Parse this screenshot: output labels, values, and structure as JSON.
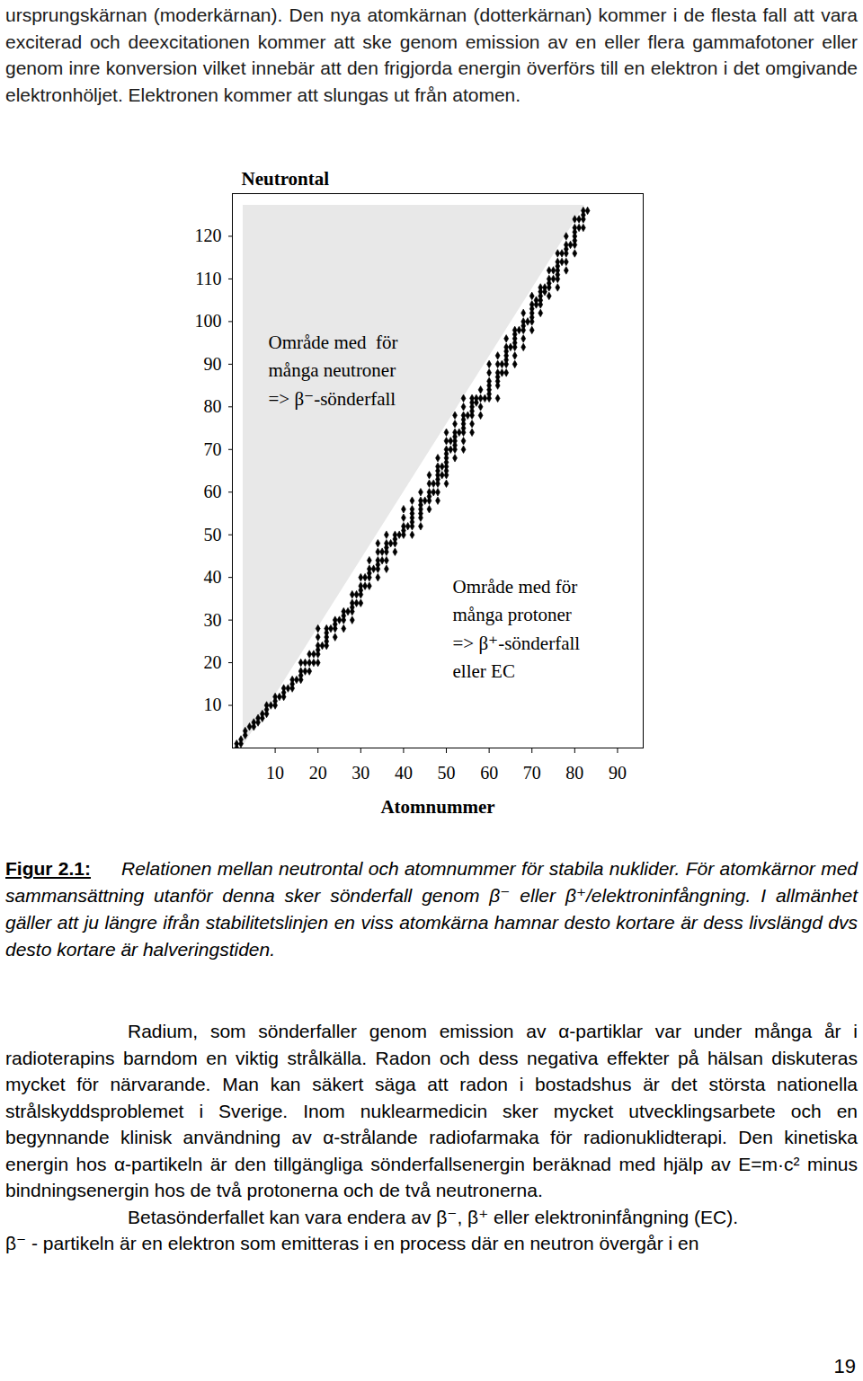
{
  "page": {
    "top_text": "ursprungskärnan (moderkärnan). Den nya atomkärnan (dotterkärnan) kommer i de flesta fall att vara exciterad och deexcitationen kommer att ske genom emission av en eller flera gammafotoner eller genom inre konversion vilket innebär att den frigjorda energin överförs till en elektron i det omgivande elektronhöljet. Elektronen kommer att slungas ut från atomen.",
    "caption": {
      "label": "Figur 2.1:",
      "text": "Relationen mellan neutrontal och atomnummer för stabila nuklider. För atomkärnor med sammansättning utanför denna sker sönderfall genom β⁻ eller β⁺/elektroninfångning. I allmänhet gäller att ju längre ifrån stabilitetslinjen en viss atomkärna hamnar desto kortare är dess livslängd dvs desto kortare är halveringstiden."
    },
    "paragraphs": [
      "Radium, som sönderfaller genom emission av α-partiklar var under många år i radioterapins barndom en viktig strålkälla. Radon och dess negativa effekter på hälsan diskuteras mycket för närvarande. Man kan säkert säga att radon i bostadshus är det största nationella strålskyddsproblemet i Sverige. Inom nuklearmedicin sker mycket utvecklingsarbete och en begynnande klinisk användning av α-strålande radiofarmaka för radionuklidterapi. Den kinetiska energin hos α-partikeln är den tillgängliga sönderfallsenergin beräknad med hjälp av E=m·c² minus bindningsenergin hos de två protonerna och de två neutronerna.",
      "Betasönderfallet kan vara endera av β⁻, β⁺ eller elektroninfångning (EC)."
    ],
    "continuation": "β⁻ - partikeln är en elektron som emitteras i en process där en neutron övergår i en",
    "page_number": "19"
  },
  "chart_data": {
    "type": "scatter",
    "y_label": "Neutrontal",
    "x_label": "Atomnummer",
    "marker": "diamond",
    "color": "#000000",
    "grid": false,
    "xlim": [
      0,
      96
    ],
    "ylim": [
      0,
      130
    ],
    "xticks": [
      10,
      20,
      30,
      40,
      50,
      60,
      70,
      80,
      90
    ],
    "yticks": [
      10,
      20,
      30,
      40,
      50,
      60,
      70,
      80,
      90,
      100,
      110,
      120
    ],
    "annotations": [
      "Område med  för\nmånga neutroner\n=> β⁻-sönderfall",
      "Område med för\nmånga protoner\n=> β⁺-sönderfall\neller EC"
    ],
    "x": [
      1,
      1,
      2,
      2,
      3,
      3,
      4,
      5,
      5,
      6,
      6,
      7,
      7,
      8,
      8,
      8,
      9,
      10,
      10,
      10,
      11,
      12,
      12,
      12,
      13,
      14,
      14,
      14,
      15,
      16,
      16,
      16,
      16,
      17,
      17,
      18,
      18,
      18,
      19,
      19,
      20,
      20,
      20,
      20,
      20,
      20,
      21,
      22,
      22,
      22,
      22,
      22,
      23,
      24,
      24,
      24,
      24,
      25,
      26,
      26,
      26,
      26,
      27,
      28,
      28,
      28,
      28,
      28,
      29,
      29,
      30,
      30,
      30,
      30,
      30,
      31,
      31,
      32,
      32,
      32,
      32,
      32,
      33,
      34,
      34,
      34,
      34,
      34,
      34,
      35,
      35,
      36,
      36,
      36,
      36,
      36,
      36,
      37,
      38,
      38,
      38,
      38,
      39,
      40,
      40,
      40,
      40,
      40,
      41,
      42,
      42,
      42,
      42,
      42,
      42,
      42,
      44,
      44,
      44,
      44,
      44,
      44,
      44,
      45,
      46,
      46,
      46,
      46,
      46,
      46,
      47,
      47,
      48,
      48,
      48,
      48,
      48,
      48,
      48,
      48,
      49,
      49,
      50,
      50,
      50,
      50,
      50,
      50,
      50,
      50,
      50,
      50,
      51,
      51,
      52,
      52,
      52,
      52,
      52,
      52,
      52,
      52,
      53,
      54,
      54,
      54,
      54,
      54,
      54,
      54,
      54,
      54,
      55,
      56,
      56,
      56,
      56,
      56,
      56,
      56,
      57,
      57,
      58,
      58,
      58,
      58,
      59,
      60,
      60,
      60,
      60,
      60,
      60,
      60,
      62,
      62,
      62,
      62,
      62,
      62,
      62,
      63,
      63,
      64,
      64,
      64,
      64,
      64,
      64,
      64,
      65,
      66,
      66,
      66,
      66,
      66,
      66,
      66,
      67,
      68,
      68,
      68,
      68,
      68,
      68,
      69,
      70,
      70,
      70,
      70,
      70,
      70,
      70,
      71,
      71,
      72,
      72,
      72,
      72,
      72,
      72,
      73,
      73,
      74,
      74,
      74,
      74,
      74,
      75,
      75,
      76,
      76,
      76,
      76,
      76,
      76,
      76,
      77,
      77,
      78,
      78,
      78,
      78,
      78,
      78,
      79,
      80,
      80,
      80,
      80,
      80,
      80,
      80,
      81,
      81,
      82,
      82,
      82,
      82,
      83
    ],
    "values": [
      0,
      1,
      1,
      2,
      3,
      4,
      5,
      5,
      6,
      6,
      7,
      7,
      8,
      8,
      9,
      10,
      10,
      10,
      11,
      12,
      12,
      12,
      13,
      14,
      14,
      14,
      15,
      16,
      16,
      16,
      17,
      18,
      20,
      18,
      20,
      18,
      20,
      22,
      20,
      22,
      20,
      22,
      23,
      24,
      26,
      28,
      24,
      24,
      25,
      26,
      27,
      28,
      28,
      26,
      28,
      29,
      30,
      30,
      28,
      30,
      31,
      32,
      32,
      30,
      32,
      33,
      34,
      36,
      34,
      36,
      34,
      36,
      37,
      38,
      40,
      38,
      40,
      38,
      40,
      41,
      42,
      44,
      42,
      40,
      42,
      43,
      44,
      46,
      48,
      44,
      46,
      42,
      44,
      46,
      47,
      48,
      50,
      48,
      46,
      48,
      49,
      50,
      50,
      50,
      51,
      52,
      54,
      56,
      52,
      50,
      52,
      53,
      54,
      55,
      56,
      58,
      52,
      54,
      55,
      56,
      57,
      58,
      60,
      58,
      56,
      58,
      59,
      60,
      62,
      64,
      60,
      62,
      58,
      60,
      62,
      63,
      64,
      65,
      66,
      68,
      64,
      66,
      62,
      64,
      65,
      66,
      67,
      68,
      69,
      70,
      72,
      74,
      70,
      72,
      68,
      70,
      71,
      72,
      73,
      74,
      76,
      78,
      74,
      70,
      72,
      74,
      75,
      76,
      77,
      78,
      80,
      82,
      78,
      74,
      76,
      78,
      79,
      80,
      81,
      82,
      81,
      82,
      78,
      80,
      82,
      84,
      82,
      82,
      83,
      84,
      85,
      86,
      88,
      90,
      82,
      85,
      86,
      87,
      88,
      90,
      92,
      88,
      90,
      88,
      90,
      91,
      92,
      93,
      94,
      96,
      94,
      90,
      92,
      94,
      95,
      96,
      97,
      98,
      98,
      94,
      96,
      98,
      99,
      100,
      102,
      100,
      98,
      100,
      101,
      102,
      103,
      104,
      106,
      104,
      105,
      102,
      104,
      105,
      106,
      107,
      108,
      107,
      108,
      106,
      108,
      109,
      110,
      112,
      110,
      112,
      108,
      110,
      111,
      112,
      113,
      114,
      116,
      114,
      116,
      112,
      114,
      116,
      117,
      118,
      120,
      118,
      116,
      118,
      119,
      120,
      121,
      122,
      124,
      122,
      124,
      122,
      124,
      125,
      126,
      126
    ]
  }
}
